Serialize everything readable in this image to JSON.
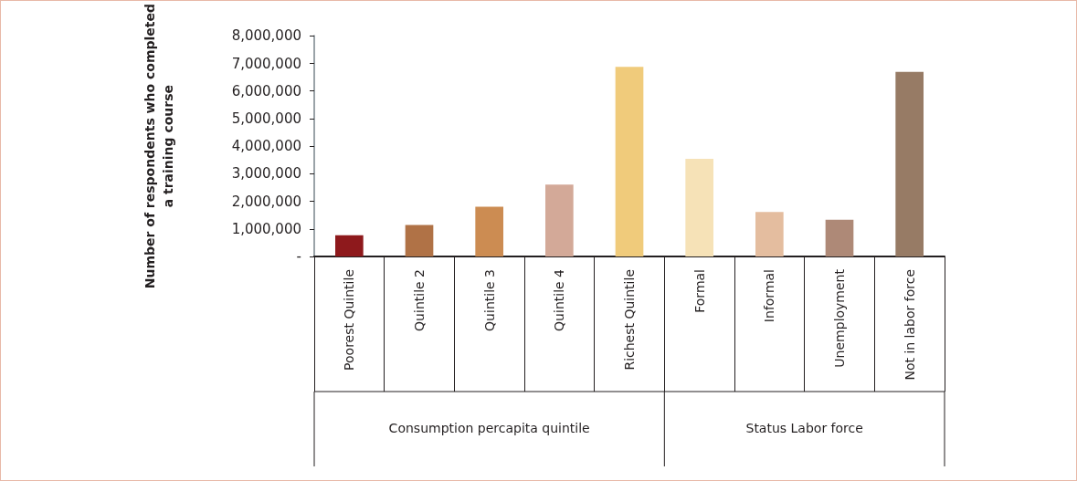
{
  "chart_data": {
    "type": "bar",
    "ylabel": "Number of respondents who completed\na training course",
    "categories": [
      "Poorest Quintile",
      "Quintile 2",
      "Quintile 3",
      "Quintile 4",
      "Richest Quintile",
      "Formal",
      "Informal",
      "Unemployment",
      "Not in labor force"
    ],
    "values": [
      770000,
      1140000,
      1800000,
      2610000,
      6880000,
      3540000,
      1610000,
      1330000,
      6690000
    ],
    "colors": [
      "#8e191c",
      "#b07246",
      "#cc8c52",
      "#d3a998",
      "#f0cb7b",
      "#f6e2b7",
      "#e4bd9f",
      "#ae8977",
      "#977b65"
    ],
    "ylim": [
      0,
      8000000
    ],
    "yticks": [
      {
        "value": 0,
        "label": "-"
      },
      {
        "value": 1000000,
        "label": "1,000,000"
      },
      {
        "value": 2000000,
        "label": "2,000,000"
      },
      {
        "value": 3000000,
        "label": "3,000,000"
      },
      {
        "value": 4000000,
        "label": "4,000,000"
      },
      {
        "value": 5000000,
        "label": "5,000,000"
      },
      {
        "value": 6000000,
        "label": "6,000,000"
      },
      {
        "value": 7000000,
        "label": "7,000,000"
      },
      {
        "value": 8000000,
        "label": "8,000,000"
      }
    ],
    "annotations": [
      "Consumption percapita quintile",
      "Status Labor force"
    ],
    "grid": false
  }
}
